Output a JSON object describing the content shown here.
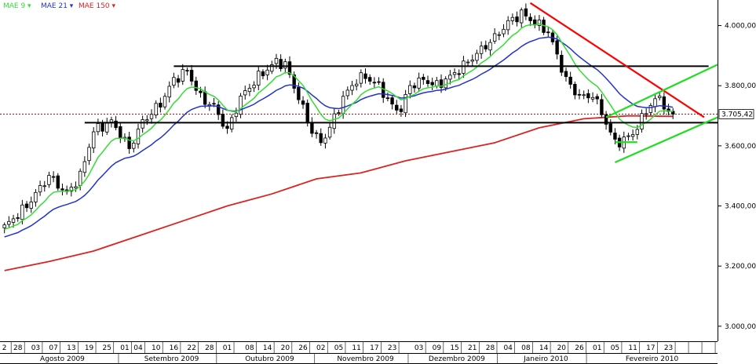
{
  "chart_data": {
    "type": "candlestick",
    "legend": [
      {
        "label": "MAE 9 ▾",
        "color": "#33dd33"
      },
      {
        "label": "MAE 21 ▾",
        "color": "#2233cc"
      },
      {
        "label": "MAE 150 ▾",
        "color": "#dd2222"
      }
    ],
    "current_value_label": "3.705,42",
    "current_value": 3705.42,
    "ylim": [
      2950,
      4085
    ],
    "y_ticks": [
      {
        "value": 3000,
        "label": "3.000,00"
      },
      {
        "value": 3200,
        "label": "3.200,00"
      },
      {
        "value": 3400,
        "label": "3.400,00"
      },
      {
        "value": 3600,
        "label": "3.600,00"
      },
      {
        "value": 3800,
        "label": "3.800,00"
      },
      {
        "value": 4000,
        "label": "4.000,00"
      }
    ],
    "xlim": [
      -1,
      160
    ],
    "x_day_labels": [
      {
        "i": 0,
        "label": "2"
      },
      {
        "i": 3,
        "label": "28"
      },
      {
        "i": 7,
        "label": "03"
      },
      {
        "i": 11,
        "label": "07"
      },
      {
        "i": 15,
        "label": "13"
      },
      {
        "i": 19,
        "label": "19"
      },
      {
        "i": 23,
        "label": "25"
      },
      {
        "i": 27,
        "label": "01"
      },
      {
        "i": 30,
        "label": "04"
      },
      {
        "i": 34,
        "label": "10"
      },
      {
        "i": 38,
        "label": "16"
      },
      {
        "i": 42,
        "label": "22"
      },
      {
        "i": 46,
        "label": "28"
      },
      {
        "i": 50,
        "label": "01"
      },
      {
        "i": 55,
        "label": "08"
      },
      {
        "i": 59,
        "label": "14"
      },
      {
        "i": 63,
        "label": "20"
      },
      {
        "i": 67,
        "label": "26"
      },
      {
        "i": 71,
        "label": "02"
      },
      {
        "i": 75,
        "label": "05"
      },
      {
        "i": 79,
        "label": "11"
      },
      {
        "i": 83,
        "label": "17"
      },
      {
        "i": 87,
        "label": "23"
      },
      {
        "i": 93,
        "label": "03"
      },
      {
        "i": 97,
        "label": "09"
      },
      {
        "i": 101,
        "label": "15"
      },
      {
        "i": 105,
        "label": "21"
      },
      {
        "i": 109,
        "label": "28"
      },
      {
        "i": 113,
        "label": "04"
      },
      {
        "i": 117,
        "label": "08"
      },
      {
        "i": 121,
        "label": "14"
      },
      {
        "i": 125,
        "label": "20"
      },
      {
        "i": 129,
        "label": "26"
      },
      {
        "i": 133,
        "label": "01"
      },
      {
        "i": 137,
        "label": "05"
      },
      {
        "i": 141,
        "label": "11"
      },
      {
        "i": 145,
        "label": "17"
      },
      {
        "i": 149,
        "label": "23"
      }
    ],
    "month_labels": [
      {
        "from": 0,
        "to": 26,
        "label": "Agosto 2009"
      },
      {
        "from": 27,
        "to": 48,
        "label": "Setembro 2009"
      },
      {
        "from": 49,
        "to": 70,
        "label": "Outubro 2009"
      },
      {
        "from": 71,
        "to": 91,
        "label": "Novembro 2009"
      },
      {
        "from": 92,
        "to": 111,
        "label": "Dezembro 2009"
      },
      {
        "from": 112,
        "to": 131,
        "label": "Janeiro 2010"
      },
      {
        "from": 132,
        "to": 160,
        "label": "Fevereiro 2010"
      }
    ],
    "anchors": [
      [
        0,
        3330
      ],
      [
        5,
        3400
      ],
      [
        10,
        3500
      ],
      [
        14,
        3440
      ],
      [
        17,
        3500
      ],
      [
        20,
        3650
      ],
      [
        24,
        3680
      ],
      [
        26,
        3640
      ],
      [
        28,
        3590
      ],
      [
        31,
        3680
      ],
      [
        35,
        3740
      ],
      [
        38,
        3820
      ],
      [
        41,
        3850
      ],
      [
        44,
        3760
      ],
      [
        47,
        3730
      ],
      [
        50,
        3650
      ],
      [
        53,
        3760
      ],
      [
        57,
        3830
      ],
      [
        61,
        3880
      ],
      [
        63,
        3870
      ],
      [
        66,
        3760
      ],
      [
        69,
        3650
      ],
      [
        71,
        3610
      ],
      [
        73,
        3660
      ],
      [
        76,
        3760
      ],
      [
        79,
        3820
      ],
      [
        81,
        3830
      ],
      [
        84,
        3800
      ],
      [
        87,
        3730
      ],
      [
        89,
        3720
      ],
      [
        91,
        3800
      ],
      [
        94,
        3820
      ],
      [
        97,
        3800
      ],
      [
        101,
        3840
      ],
      [
        104,
        3880
      ],
      [
        107,
        3920
      ],
      [
        110,
        3960
      ],
      [
        113,
        4010
      ],
      [
        116,
        4040
      ],
      [
        119,
        4010
      ],
      [
        122,
        3980
      ],
      [
        124,
        3900
      ],
      [
        126,
        3820
      ],
      [
        128,
        3780
      ],
      [
        130,
        3760
      ],
      [
        132,
        3770
      ],
      [
        134,
        3710
      ],
      [
        137,
        3610
      ],
      [
        139,
        3620
      ],
      [
        141,
        3640
      ],
      [
        143,
        3690
      ],
      [
        145,
        3740
      ],
      [
        147,
        3760
      ],
      [
        149,
        3710
      ],
      [
        150,
        3705
      ]
    ],
    "mae_150": [
      [
        0,
        3185
      ],
      [
        10,
        3215
      ],
      [
        20,
        3250
      ],
      [
        30,
        3300
      ],
      [
        40,
        3350
      ],
      [
        50,
        3400
      ],
      [
        60,
        3440
      ],
      [
        70,
        3490
      ],
      [
        80,
        3510
      ],
      [
        90,
        3550
      ],
      [
        100,
        3580
      ],
      [
        110,
        3610
      ],
      [
        120,
        3660
      ],
      [
        130,
        3690
      ],
      [
        140,
        3700
      ],
      [
        150,
        3698
      ]
    ],
    "trend_lines": [
      {
        "color": "#000000",
        "points": [
          [
            38,
            3865
          ],
          [
            158,
            3865
          ]
        ]
      },
      {
        "color": "#000000",
        "points": [
          [
            18,
            3677
          ],
          [
            160,
            3677
          ]
        ]
      },
      {
        "color": "#ff0000",
        "points": [
          [
            118,
            4075
          ],
          [
            157,
            3695
          ]
        ]
      },
      {
        "color": "#22dd22",
        "points": [
          [
            135,
            3695
          ],
          [
            179,
            4003
          ]
        ]
      },
      {
        "color": "#22dd22",
        "points": [
          [
            137,
            3545
          ],
          [
            180,
            3825
          ]
        ]
      },
      {
        "color": "#22dd22",
        "points": [
          [
            137,
            3612
          ],
          [
            142,
            3612
          ]
        ]
      }
    ],
    "reference_line": {
      "value": 3705.42,
      "color": "#dd0000"
    },
    "series": [
      {
        "name": "MAE 9",
        "period": 9,
        "color": "#33dd33"
      },
      {
        "name": "MAE 21",
        "period": 21,
        "color": "#2233cc"
      },
      {
        "name": "MAE 150",
        "period": 150,
        "color": "#dd2222"
      }
    ]
  }
}
